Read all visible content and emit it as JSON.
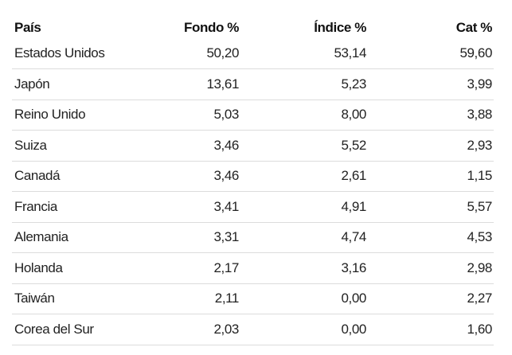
{
  "table": {
    "headers": [
      "País",
      "Fondo %",
      "Índice %",
      "Cat %"
    ],
    "rows": [
      [
        "Estados Unidos",
        "50,20",
        "53,14",
        "59,60"
      ],
      [
        "Japón",
        "13,61",
        "5,23",
        "3,99"
      ],
      [
        "Reino Unido",
        "5,03",
        "8,00",
        "3,88"
      ],
      [
        "Suiza",
        "3,46",
        "5,52",
        "2,93"
      ],
      [
        "Canadá",
        "3,46",
        "2,61",
        "1,15"
      ],
      [
        "Francia",
        "3,41",
        "4,91",
        "5,57"
      ],
      [
        "Alemania",
        "3,31",
        "4,74",
        "4,53"
      ],
      [
        "Holanda",
        "2,17",
        "3,16",
        "2,98"
      ],
      [
        "Taiwán",
        "2,11",
        "0,00",
        "2,27"
      ],
      [
        "Corea del Sur",
        "2,03",
        "0,00",
        "1,60"
      ]
    ]
  }
}
